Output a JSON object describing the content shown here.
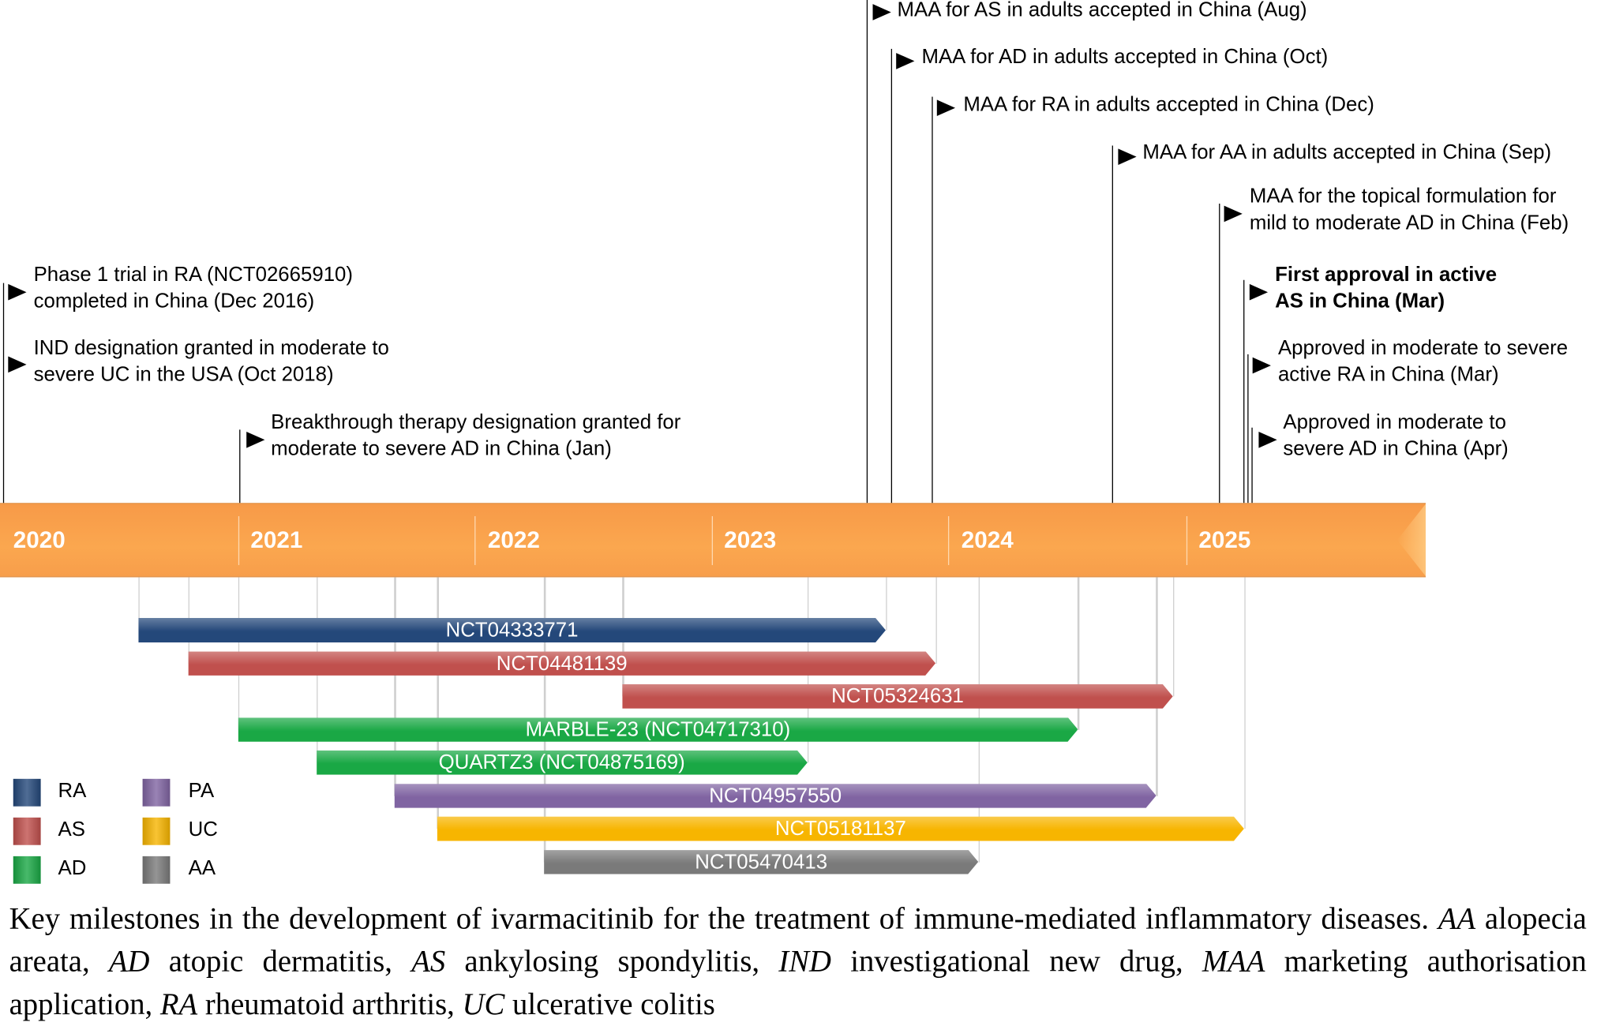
{
  "milestones": {
    "phase1": [
      "Phase 1 trial in RA (NCT02665910)",
      "completed in China (Dec 2016)"
    ],
    "ind": [
      "IND designation granted in moderate to",
      "severe UC in the USA (Oct 2018)"
    ],
    "breakthrough": [
      "Breakthrough therapy designation granted for",
      "moderate to severe AD in China (Jan)"
    ],
    "maa_as": "MAA for AS in adults accepted in China (Aug)",
    "maa_ad": "MAA for AD in adults accepted in China (Oct)",
    "maa_ra": "MAA for RA in adults accepted in China (Dec)",
    "maa_aa": "MAA for AA in adults accepted in China (Sep)",
    "maa_topical": [
      "MAA for the topical formulation for",
      "mild to moderate AD in China (Feb)"
    ],
    "first_approval": [
      "First approval in active",
      "AS in China (Mar)"
    ],
    "approved_ra": [
      "Approved in moderate to severe",
      "active RA in China (Mar)"
    ],
    "approved_ad": [
      "Approved in moderate to",
      "severe AD in China (Apr)"
    ]
  },
  "years": [
    "2020",
    "2021",
    "2022",
    "2023",
    "2024",
    "2025"
  ],
  "colors": {
    "RA": "#24487a",
    "AS": "#c0504d",
    "AD": "#1aa845",
    "PA": "#8064a2",
    "UC": "#f7b500",
    "AA": "#7a7a7a",
    "timeline": "#fba74f"
  },
  "trials": [
    {
      "label": "NCT04333771",
      "indication": "RA",
      "start": 2020.57,
      "end": 2023.72
    },
    {
      "label": "NCT04481139",
      "indication": "AS",
      "start": 2020.78,
      "end": 2023.93
    },
    {
      "label": "NCT05324631",
      "indication": "AS",
      "start": 2022.61,
      "end": 2024.93
    },
    {
      "label": "MARBLE-23 (NCT04717310)",
      "indication": "AD",
      "start": 2020.99,
      "end": 2024.53
    },
    {
      "label": "QUARTZ3 (NCT04875169)",
      "indication": "AD",
      "start": 2021.32,
      "end": 2023.39
    },
    {
      "label": "NCT04957550",
      "indication": "PA",
      "start": 2021.65,
      "end": 2024.86
    },
    {
      "label": "NCT05181137",
      "indication": "UC",
      "start": 2021.83,
      "end": 2025.23
    },
    {
      "label": "NCT05470413",
      "indication": "AA",
      "start": 2022.28,
      "end": 2024.11
    }
  ],
  "legend": [
    "RA",
    "AS",
    "AD",
    "PA",
    "UC",
    "AA"
  ],
  "caption": {
    "t1": "Key milestones in the development of ivarmacitinib for the treatment of immune-mediated inflammatory diseases. ",
    "aa": "AA",
    "t2": " alopecia areata, ",
    "ad": "AD",
    "t3": " atopic dermatitis, ",
    "as": "AS",
    "t4": " ankylosing spondylitis, ",
    "ind": "IND",
    "t5": " investigational new drug, ",
    "maa": "MAA",
    "t6": " marketing authorisation application, ",
    "ra": "RA",
    "t7": " rheumatoid arthritis, ",
    "uc": "UC",
    "t8": " ulcerative colitis"
  }
}
